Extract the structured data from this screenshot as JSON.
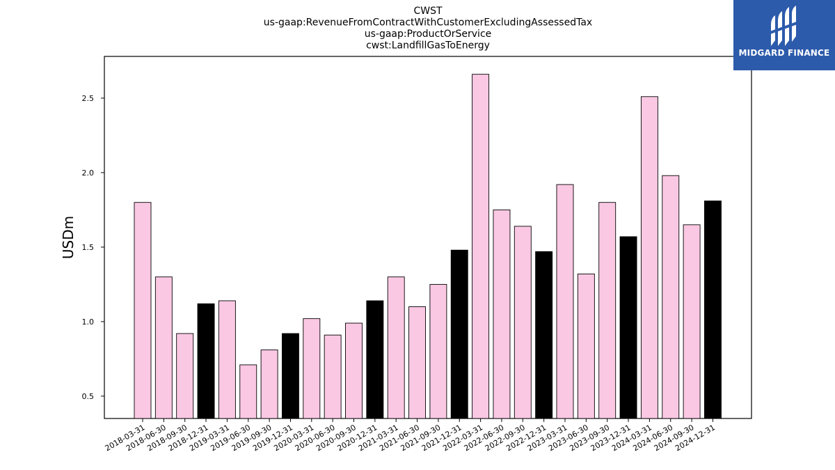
{
  "logo": {
    "text": "MIDGARD FINANCE"
  },
  "chart_data": {
    "type": "bar",
    "title_lines": [
      "CWST",
      "us-gaap:RevenueFromContractWithCustomerExcludingAssessedTax",
      "us-gaap:ProductOrService",
      "cwst:LandfillGasToEnergy"
    ],
    "xlabel": "",
    "ylabel": "USDm",
    "ylim": [
      0.35,
      2.78
    ],
    "yticks": [
      0.5,
      1.0,
      1.5,
      2.0,
      2.5
    ],
    "ytick_labels": [
      "0.5",
      "1.0",
      "1.5",
      "2.0",
      "2.5"
    ],
    "grid": false,
    "colors": {
      "quarter": "#fbc8e3",
      "year_end": "#000000",
      "edge": "#000000"
    },
    "categories": [
      "2018-03-31",
      "2018-06-30",
      "2018-09-30",
      "2018-12-31",
      "2019-03-31",
      "2019-06-30",
      "2019-09-30",
      "2019-12-31",
      "2020-03-31",
      "2020-06-30",
      "2020-09-30",
      "2020-12-31",
      "2021-03-31",
      "2021-06-30",
      "2021-09-30",
      "2021-12-31",
      "2022-03-31",
      "2022-06-30",
      "2022-09-30",
      "2022-12-31",
      "2023-03-31",
      "2023-06-30",
      "2023-09-30",
      "2023-12-31",
      "2024-03-31",
      "2024-06-30",
      "2024-09-30",
      "2024-12-31"
    ],
    "values": [
      1.8,
      1.3,
      0.92,
      1.12,
      1.14,
      0.71,
      0.81,
      0.92,
      1.02,
      0.91,
      0.99,
      1.14,
      1.3,
      1.1,
      1.25,
      1.48,
      2.66,
      1.75,
      1.64,
      1.47,
      1.92,
      1.32,
      1.8,
      1.57,
      2.51,
      1.98,
      1.65,
      1.81
    ]
  }
}
